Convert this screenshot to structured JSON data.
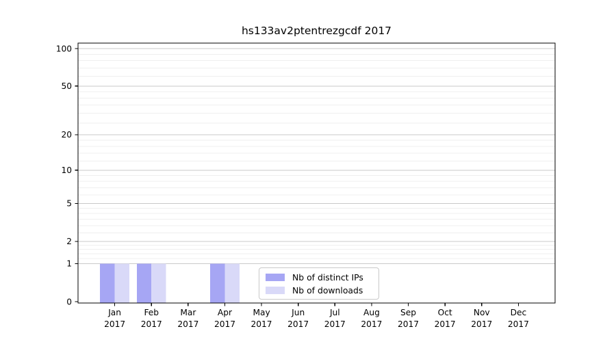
{
  "page": {
    "background": "#ffffff"
  },
  "chart_data": {
    "type": "bar",
    "title": "hs133av2ptentrezgcdf 2017",
    "x": {
      "months": [
        "Jan",
        "Feb",
        "Mar",
        "Apr",
        "May",
        "Jun",
        "Jul",
        "Aug",
        "Sep",
        "Oct",
        "Nov",
        "Dec"
      ],
      "year": "2017"
    },
    "categories": [
      "Jan 2017",
      "Feb 2017",
      "Mar 2017",
      "Apr 2017",
      "May 2017",
      "Jun 2017",
      "Jul 2017",
      "Aug 2017",
      "Sep 2017",
      "Oct 2017",
      "Nov 2017",
      "Dec 2017"
    ],
    "series": [
      {
        "name": "Nb of distinct IPs",
        "color": "#a6a6f4",
        "values": [
          1,
          1,
          0,
          1,
          0,
          0,
          0,
          0,
          0,
          0,
          0,
          0
        ]
      },
      {
        "name": "Nb of downloads",
        "color": "#d9d9f8",
        "values": [
          1,
          1,
          0,
          1,
          0,
          0,
          0,
          0,
          0,
          0,
          0,
          0
        ]
      }
    ],
    "y_axis": {
      "scale": "log1p",
      "range": [
        0,
        100
      ],
      "tick_labels": [
        0,
        1,
        2,
        5,
        10,
        20,
        50,
        100
      ],
      "gridline_values": [
        1,
        2,
        5,
        10,
        20,
        50,
        100
      ],
      "minor_gridline_values": [
        1.2,
        1.4,
        1.6,
        1.8,
        2.5,
        3,
        3.5,
        4,
        4.5,
        6,
        7,
        8,
        9,
        12,
        14,
        16,
        18,
        25,
        30,
        35,
        40,
        45,
        60,
        70,
        80,
        90
      ]
    },
    "legend": {
      "entries": [
        "Nb of distinct IPs",
        "Nb of downloads"
      ]
    },
    "colors": {
      "grid_major": "#c9c9c9",
      "grid_minor": "#efefef",
      "axis": "#000000",
      "text": "#000000",
      "legend_border": "#c9c9c9"
    }
  }
}
